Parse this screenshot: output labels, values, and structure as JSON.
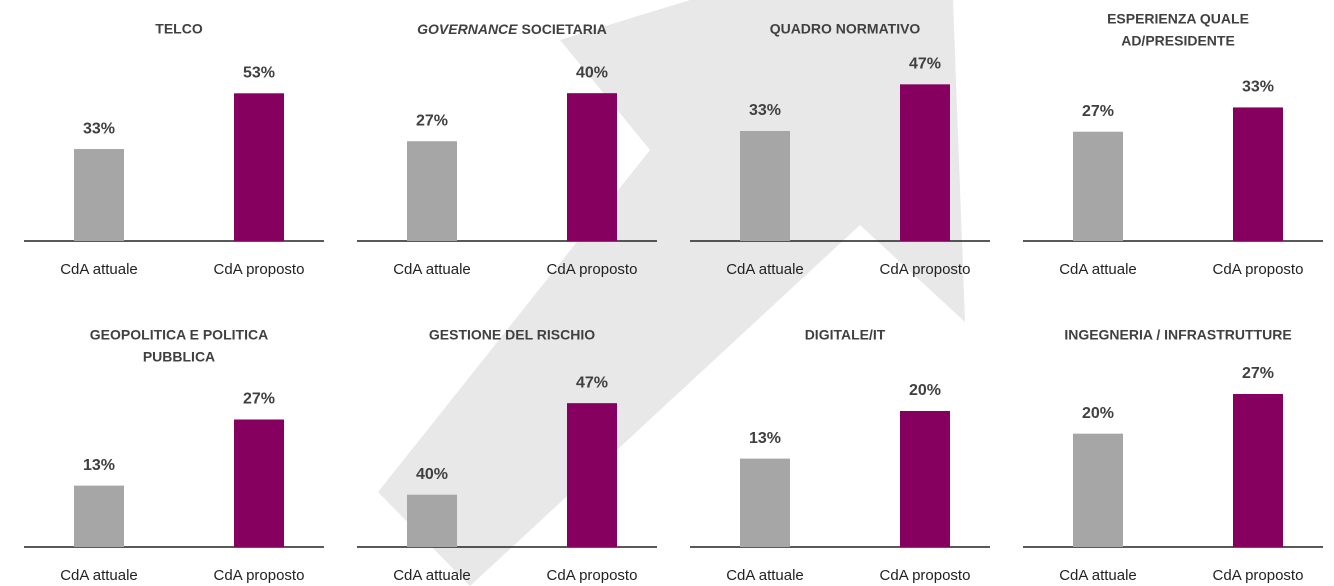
{
  "chart_data": [
    {
      "type": "bar",
      "title": [
        "TELCO"
      ],
      "categories": [
        "CdA attuale",
        "CdA proposto"
      ],
      "values": [
        33,
        53
      ],
      "value_labels": [
        "33%",
        "53%"
      ],
      "colors": [
        "#a6a6a6",
        "#86005f"
      ],
      "ylim": [
        0,
        61
      ]
    },
    {
      "type": "bar",
      "title_italic": "GOVERNANCE",
      "title": [
        "SOCIETARIA"
      ],
      "categories": [
        "CdA attuale",
        "CdA proposto"
      ],
      "values": [
        27,
        40
      ],
      "value_labels": [
        "27%",
        "40%"
      ],
      "colors": [
        "#a6a6a6",
        "#86005f"
      ],
      "ylim": [
        0,
        46
      ]
    },
    {
      "type": "bar",
      "title": [
        "QUADRO NORMATIVO"
      ],
      "categories": [
        "CdA attuale",
        "CdA proposto"
      ],
      "values": [
        33,
        47
      ],
      "value_labels": [
        "33%",
        "47%"
      ],
      "colors": [
        "#a6a6a6",
        "#86005f"
      ],
      "ylim": [
        0,
        51
      ]
    },
    {
      "type": "bar",
      "title": [
        "ESPERIENZA QUALE",
        "AD/PRESIDENTE"
      ],
      "categories": [
        "CdA attuale",
        "CdA proposto"
      ],
      "values": [
        27,
        33
      ],
      "value_labels": [
        "27%",
        "33%"
      ],
      "colors": [
        "#a6a6a6",
        "#86005f"
      ],
      "ylim": [
        0,
        42
      ]
    },
    {
      "type": "bar",
      "title": [
        "GEOPOLITICA E POLITICA",
        "PUBBLICA"
      ],
      "categories": [
        "CdA attuale",
        "CdA proposto"
      ],
      "values": [
        13,
        27
      ],
      "value_labels": [
        "13%",
        "27%"
      ],
      "colors": [
        "#a6a6a6",
        "#86005f"
      ],
      "ylim": [
        0,
        36
      ]
    },
    {
      "type": "bar",
      "title": [
        "GESTIONE DEL RISCHIO"
      ],
      "categories": [
        "CdA attuale",
        "CdA proposto"
      ],
      "values": [
        40,
        47
      ],
      "value_labels": [
        "40%",
        "47%"
      ],
      "colors": [
        "#a6a6a6",
        "#86005f"
      ],
      "ylim": [
        36,
        49
      ]
    },
    {
      "type": "bar",
      "title": [
        "DIGITALE/IT"
      ],
      "categories": [
        "CdA attuale",
        "CdA proposto"
      ],
      "values": [
        13,
        20
      ],
      "value_labels": [
        "13%",
        "20%"
      ],
      "colors": [
        "#a6a6a6",
        "#86005f"
      ],
      "ylim": [
        0,
        25
      ]
    },
    {
      "type": "bar",
      "title": [
        "INGEGNERIA / INFRASTRUTTURE"
      ],
      "categories": [
        "CdA attuale",
        "CdA proposto"
      ],
      "values": [
        20,
        27
      ],
      "value_labels": [
        "20%",
        "27%"
      ],
      "colors": [
        "#a6a6a6",
        "#86005f"
      ],
      "ylim": [
        0,
        30
      ]
    }
  ]
}
